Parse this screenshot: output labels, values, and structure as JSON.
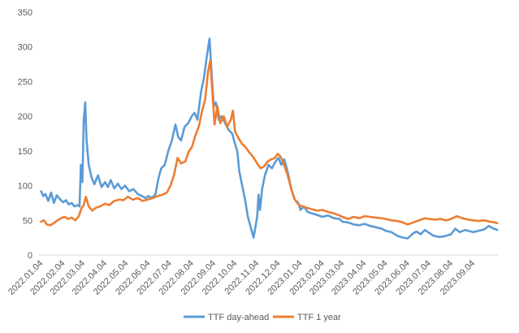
{
  "chart_data": {
    "type": "line",
    "title": "",
    "xlabel": "",
    "ylabel": "",
    "ylim": [
      0,
      350
    ],
    "yticks": [
      0,
      50,
      100,
      150,
      200,
      250,
      300,
      350
    ],
    "xlim": [
      "2022-01-01",
      "2023-10-10"
    ],
    "xticks": [
      "2022.01.04",
      "2022.02.04",
      "2022.03.04",
      "2022.04.04",
      "2022.05.04",
      "2022.06.04",
      "2022.07.04",
      "2022.08.04",
      "2022.09.04",
      "2022.10.04",
      "2022.11.04",
      "2022.12.04",
      "2023.01.04",
      "2023.02.04",
      "2023.03.04",
      "2023.04.04",
      "2023.05.04",
      "2023.06.04",
      "2023.07.04",
      "2023.08.04",
      "2023.09.04"
    ],
    "grid": false,
    "legend": "bottom",
    "series": [
      {
        "name": "TTF day-ahead",
        "color": "#5b9bd5",
        "points": [
          [
            "2022-01-04",
            92
          ],
          [
            "2022-01-07",
            85
          ],
          [
            "2022-01-10",
            88
          ],
          [
            "2022-01-14",
            78
          ],
          [
            "2022-01-18",
            90
          ],
          [
            "2022-01-22",
            75
          ],
          [
            "2022-01-26",
            86
          ],
          [
            "2022-01-31",
            80
          ],
          [
            "2022-02-04",
            76
          ],
          [
            "2022-02-08",
            79
          ],
          [
            "2022-02-12",
            73
          ],
          [
            "2022-02-16",
            75
          ],
          [
            "2022-02-20",
            70
          ],
          [
            "2022-02-24",
            72
          ],
          [
            "2022-02-27",
            70
          ],
          [
            "2022-03-01",
            130
          ],
          [
            "2022-03-03",
            105
          ],
          [
            "2022-03-05",
            195
          ],
          [
            "2022-03-07",
            220
          ],
          [
            "2022-03-09",
            165
          ],
          [
            "2022-03-12",
            130
          ],
          [
            "2022-03-16",
            112
          ],
          [
            "2022-03-20",
            102
          ],
          [
            "2022-03-25",
            115
          ],
          [
            "2022-03-30",
            98
          ],
          [
            "2022-04-04",
            105
          ],
          [
            "2022-04-08",
            98
          ],
          [
            "2022-04-12",
            108
          ],
          [
            "2022-04-17",
            96
          ],
          [
            "2022-04-22",
            103
          ],
          [
            "2022-04-27",
            95
          ],
          [
            "2022-05-02",
            100
          ],
          [
            "2022-05-08",
            92
          ],
          [
            "2022-05-14",
            95
          ],
          [
            "2022-05-20",
            88
          ],
          [
            "2022-05-26",
            85
          ],
          [
            "2022-05-31",
            82
          ],
          [
            "2022-06-04",
            85
          ],
          [
            "2022-06-09",
            82
          ],
          [
            "2022-06-14",
            88
          ],
          [
            "2022-06-18",
            110
          ],
          [
            "2022-06-22",
            125
          ],
          [
            "2022-06-27",
            130
          ],
          [
            "2022-07-02",
            150
          ],
          [
            "2022-07-07",
            165
          ],
          [
            "2022-07-12",
            188
          ],
          [
            "2022-07-16",
            170
          ],
          [
            "2022-07-20",
            165
          ],
          [
            "2022-07-25",
            185
          ],
          [
            "2022-07-30",
            190
          ],
          [
            "2022-08-04",
            200
          ],
          [
            "2022-08-08",
            205
          ],
          [
            "2022-08-12",
            195
          ],
          [
            "2022-08-17",
            235
          ],
          [
            "2022-08-21",
            255
          ],
          [
            "2022-08-25",
            285
          ],
          [
            "2022-08-29",
            312
          ],
          [
            "2022-09-01",
            260
          ],
          [
            "2022-09-04",
            215
          ],
          [
            "2022-09-07",
            220
          ],
          [
            "2022-09-11",
            195
          ],
          [
            "2022-09-15",
            200
          ],
          [
            "2022-09-20",
            190
          ],
          [
            "2022-09-25",
            180
          ],
          [
            "2022-09-30",
            175
          ],
          [
            "2022-10-04",
            160
          ],
          [
            "2022-10-07",
            150
          ],
          [
            "2022-10-10",
            120
          ],
          [
            "2022-10-14",
            100
          ],
          [
            "2022-10-18",
            80
          ],
          [
            "2022-10-22",
            55
          ],
          [
            "2022-10-26",
            40
          ],
          [
            "2022-10-30",
            25
          ],
          [
            "2022-11-04",
            55
          ],
          [
            "2022-11-06",
            87
          ],
          [
            "2022-11-08",
            65
          ],
          [
            "2022-11-11",
            95
          ],
          [
            "2022-11-15",
            115
          ],
          [
            "2022-11-20",
            130
          ],
          [
            "2022-11-25",
            125
          ],
          [
            "2022-11-30",
            135
          ],
          [
            "2022-12-04",
            140
          ],
          [
            "2022-12-08",
            130
          ],
          [
            "2022-12-12",
            138
          ],
          [
            "2022-12-17",
            120
          ],
          [
            "2022-12-22",
            95
          ],
          [
            "2022-12-27",
            80
          ],
          [
            "2023-01-01",
            75
          ],
          [
            "2023-01-04",
            65
          ],
          [
            "2023-01-09",
            70
          ],
          [
            "2023-01-14",
            62
          ],
          [
            "2023-01-20",
            60
          ],
          [
            "2023-01-27",
            58
          ],
          [
            "2023-02-04",
            55
          ],
          [
            "2023-02-12",
            57
          ],
          [
            "2023-02-20",
            53
          ],
          [
            "2023-02-28",
            52
          ],
          [
            "2023-03-04",
            48
          ],
          [
            "2023-03-12",
            47
          ],
          [
            "2023-03-20",
            44
          ],
          [
            "2023-03-28",
            43
          ],
          [
            "2023-04-04",
            45
          ],
          [
            "2023-04-12",
            42
          ],
          [
            "2023-04-20",
            40
          ],
          [
            "2023-04-28",
            38
          ],
          [
            "2023-05-04",
            35
          ],
          [
            "2023-05-12",
            33
          ],
          [
            "2023-05-20",
            28
          ],
          [
            "2023-05-28",
            25
          ],
          [
            "2023-06-04",
            24
          ],
          [
            "2023-06-10",
            30
          ],
          [
            "2023-06-16",
            34
          ],
          [
            "2023-06-22",
            30
          ],
          [
            "2023-06-28",
            36
          ],
          [
            "2023-07-04",
            32
          ],
          [
            "2023-07-10",
            28
          ],
          [
            "2023-07-18",
            26
          ],
          [
            "2023-07-26",
            27
          ],
          [
            "2023-08-04",
            30
          ],
          [
            "2023-08-10",
            38
          ],
          [
            "2023-08-16",
            33
          ],
          [
            "2023-08-24",
            36
          ],
          [
            "2023-09-04",
            33
          ],
          [
            "2023-09-12",
            35
          ],
          [
            "2023-09-20",
            37
          ],
          [
            "2023-09-26",
            42
          ],
          [
            "2023-10-01",
            39
          ],
          [
            "2023-10-08",
            36
          ]
        ]
      },
      {
        "name": "TTF 1 year",
        "color": "#ed7d31",
        "points": [
          [
            "2022-01-04",
            48
          ],
          [
            "2022-01-08",
            50
          ],
          [
            "2022-01-12",
            44
          ],
          [
            "2022-01-17",
            43
          ],
          [
            "2022-01-22",
            46
          ],
          [
            "2022-01-27",
            50
          ],
          [
            "2022-02-01",
            53
          ],
          [
            "2022-02-06",
            55
          ],
          [
            "2022-02-11",
            52
          ],
          [
            "2022-02-16",
            54
          ],
          [
            "2022-02-21",
            50
          ],
          [
            "2022-02-26",
            56
          ],
          [
            "2022-03-02",
            68
          ],
          [
            "2022-03-05",
            72
          ],
          [
            "2022-03-08",
            84
          ],
          [
            "2022-03-12",
            70
          ],
          [
            "2022-03-17",
            64
          ],
          [
            "2022-03-22",
            68
          ],
          [
            "2022-03-28",
            70
          ],
          [
            "2022-04-04",
            74
          ],
          [
            "2022-04-10",
            72
          ],
          [
            "2022-04-17",
            78
          ],
          [
            "2022-04-24",
            80
          ],
          [
            "2022-04-30",
            79
          ],
          [
            "2022-05-06",
            84
          ],
          [
            "2022-05-13",
            80
          ],
          [
            "2022-05-20",
            82
          ],
          [
            "2022-05-27",
            78
          ],
          [
            "2022-06-03",
            80
          ],
          [
            "2022-06-10",
            82
          ],
          [
            "2022-06-17",
            85
          ],
          [
            "2022-06-24",
            87
          ],
          [
            "2022-06-30",
            90
          ],
          [
            "2022-07-05",
            100
          ],
          [
            "2022-07-10",
            115
          ],
          [
            "2022-07-15",
            140
          ],
          [
            "2022-07-20",
            132
          ],
          [
            "2022-07-26",
            135
          ],
          [
            "2022-07-31",
            150
          ],
          [
            "2022-08-04",
            155
          ],
          [
            "2022-08-09",
            172
          ],
          [
            "2022-08-14",
            185
          ],
          [
            "2022-08-18",
            205
          ],
          [
            "2022-08-23",
            225
          ],
          [
            "2022-08-27",
            265
          ],
          [
            "2022-08-30",
            280
          ],
          [
            "2022-09-02",
            235
          ],
          [
            "2022-09-05",
            188
          ],
          [
            "2022-09-09",
            215
          ],
          [
            "2022-09-13",
            190
          ],
          [
            "2022-09-18",
            200
          ],
          [
            "2022-09-23",
            185
          ],
          [
            "2022-09-28",
            195
          ],
          [
            "2022-10-01",
            208
          ],
          [
            "2022-10-04",
            178
          ],
          [
            "2022-10-09",
            168
          ],
          [
            "2022-10-14",
            160
          ],
          [
            "2022-10-19",
            155
          ],
          [
            "2022-10-24",
            148
          ],
          [
            "2022-10-29",
            142
          ],
          [
            "2022-11-04",
            132
          ],
          [
            "2022-11-09",
            125
          ],
          [
            "2022-11-14",
            128
          ],
          [
            "2022-11-19",
            135
          ],
          [
            "2022-11-24",
            138
          ],
          [
            "2022-11-29",
            140
          ],
          [
            "2022-12-03",
            146
          ],
          [
            "2022-12-07",
            142
          ],
          [
            "2022-12-12",
            130
          ],
          [
            "2022-12-17",
            115
          ],
          [
            "2022-12-22",
            95
          ],
          [
            "2022-12-27",
            80
          ],
          [
            "2023-01-02",
            72
          ],
          [
            "2023-01-07",
            70
          ],
          [
            "2023-01-13",
            68
          ],
          [
            "2023-01-20",
            66
          ],
          [
            "2023-01-27",
            64
          ],
          [
            "2023-02-04",
            65
          ],
          [
            "2023-02-12",
            62
          ],
          [
            "2023-02-20",
            60
          ],
          [
            "2023-02-28",
            57
          ],
          [
            "2023-03-04",
            55
          ],
          [
            "2023-03-12",
            52
          ],
          [
            "2023-03-20",
            55
          ],
          [
            "2023-03-28",
            53
          ],
          [
            "2023-04-04",
            56
          ],
          [
            "2023-04-12",
            55
          ],
          [
            "2023-04-20",
            54
          ],
          [
            "2023-04-28",
            53
          ],
          [
            "2023-05-04",
            52
          ],
          [
            "2023-05-12",
            50
          ],
          [
            "2023-05-20",
            49
          ],
          [
            "2023-05-28",
            47
          ],
          [
            "2023-06-04",
            44
          ],
          [
            "2023-06-12",
            47
          ],
          [
            "2023-06-20",
            50
          ],
          [
            "2023-06-28",
            53
          ],
          [
            "2023-07-04",
            52
          ],
          [
            "2023-07-12",
            51
          ],
          [
            "2023-07-20",
            52
          ],
          [
            "2023-07-28",
            50
          ],
          [
            "2023-08-04",
            52
          ],
          [
            "2023-08-12",
            56
          ],
          [
            "2023-08-20",
            53
          ],
          [
            "2023-08-28",
            51
          ],
          [
            "2023-09-04",
            50
          ],
          [
            "2023-09-12",
            49
          ],
          [
            "2023-09-20",
            50
          ],
          [
            "2023-09-28",
            48
          ],
          [
            "2023-10-04",
            47
          ],
          [
            "2023-10-08",
            46
          ]
        ]
      }
    ]
  }
}
